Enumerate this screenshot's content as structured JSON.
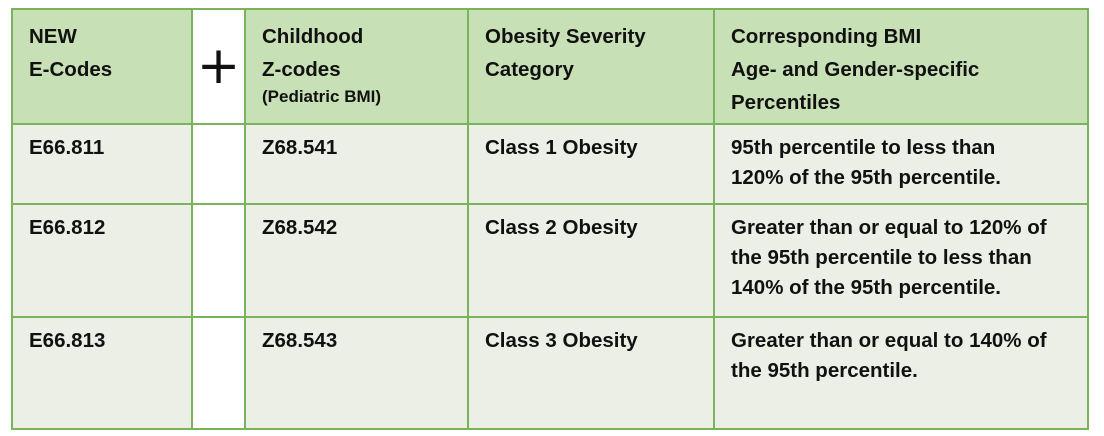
{
  "header": {
    "col1": [
      "NEW",
      "E-Codes"
    ],
    "plus": "+",
    "col2": [
      "Childhood",
      "Z-codes"
    ],
    "col2_sub": "(Pediatric BMI)",
    "col3": [
      "Obesity Severity",
      "Category"
    ],
    "col4": [
      "Corresponding BMI",
      "Age- and Gender-specific",
      "Percentiles"
    ]
  },
  "rows": [
    {
      "e_code": "E66.811",
      "z_code": "Z68.541",
      "category": "Class 1 Obesity",
      "percentile": [
        "95th percentile to less than",
        "120% of the 95th percentile."
      ]
    },
    {
      "e_code": "E66.812",
      "z_code": "Z68.542",
      "category": "Class 2 Obesity",
      "percentile": [
        "Greater than or equal to 120% of",
        "the 95th percentile to less than",
        "140% of the 95th percentile."
      ]
    },
    {
      "e_code": "E66.813",
      "z_code": "Z68.543",
      "category": "Class 3 Obesity",
      "percentile": [
        "Greater than or equal to 140% of",
        "the 95th percentile."
      ]
    }
  ],
  "colors": {
    "border": "#79b45a",
    "header_bg": "#c8e0b5",
    "body_bg": "#ebefe6"
  }
}
